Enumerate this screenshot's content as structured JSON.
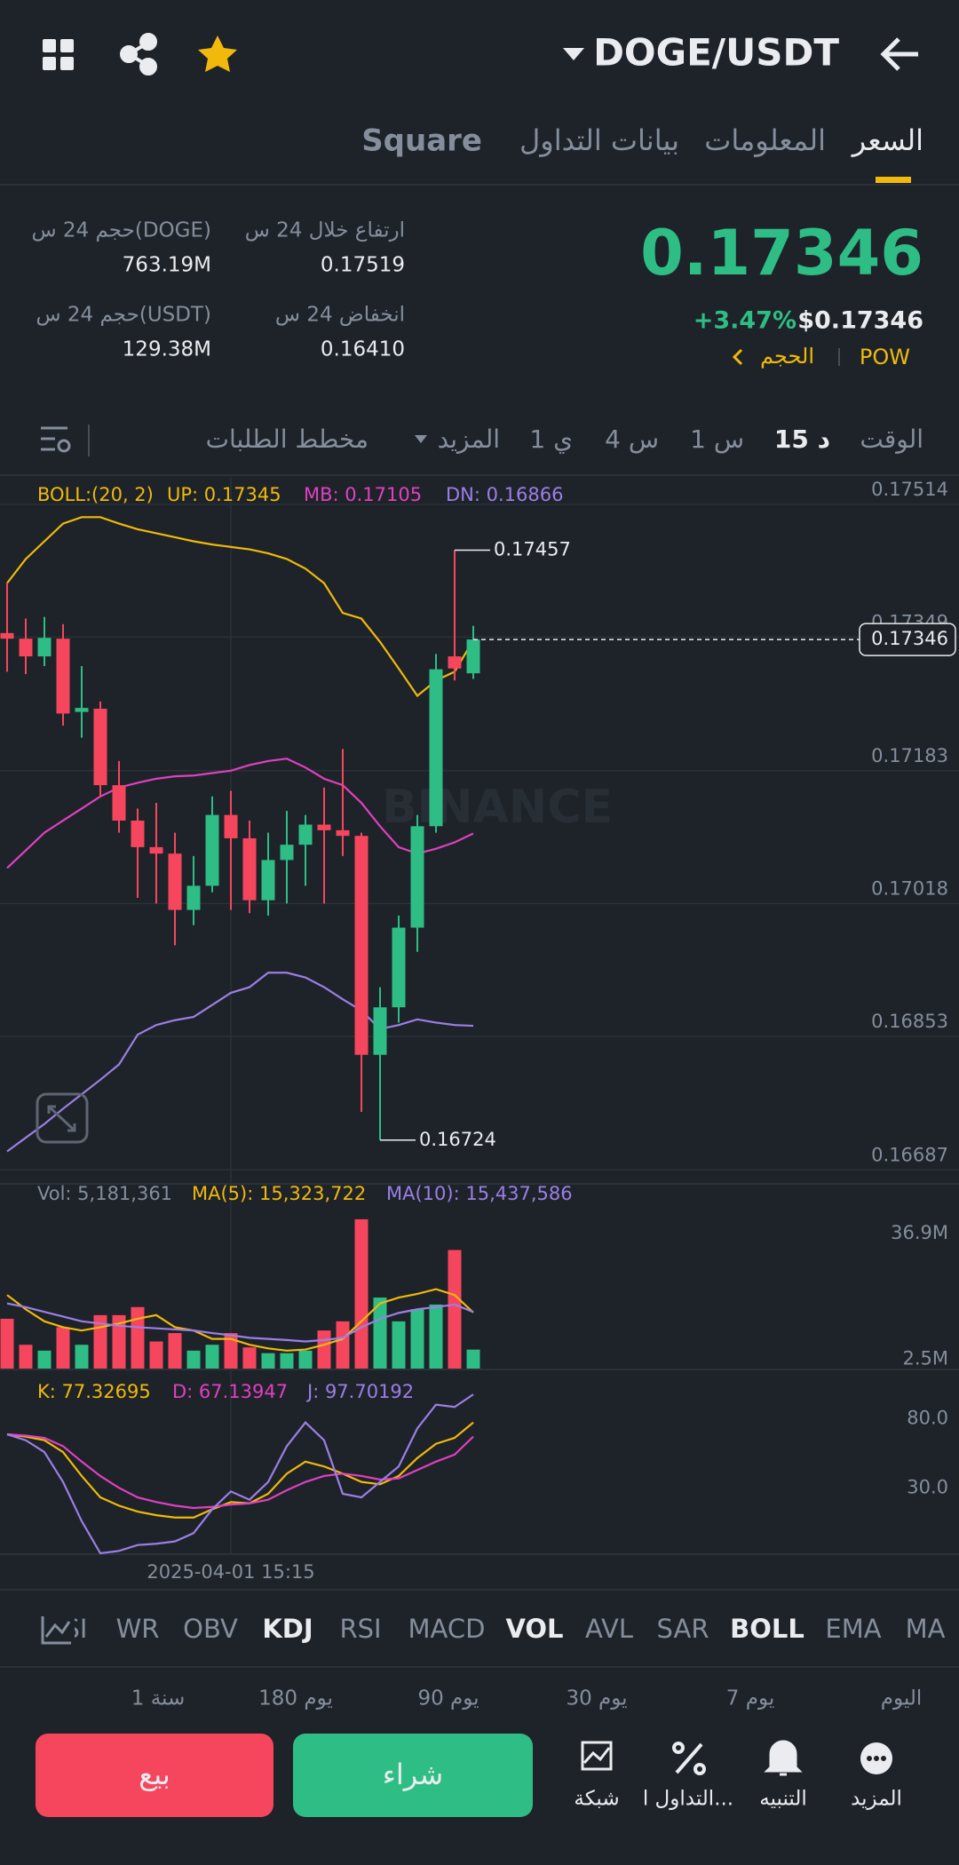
{
  "header": {
    "pair": "DOGE/USDT"
  },
  "tabs": [
    "السعر",
    "المعلومات",
    "بيانات التداول",
    "Square"
  ],
  "ticker": {
    "price": "0.17346",
    "change": "+3.47%",
    "usd_price": "$0.17346",
    "tag": "POW",
    "volume_link": "الحجم"
  },
  "stats": [
    {
      "label": "ارتفاع خلال 24 س",
      "value": "0.17519"
    },
    {
      "label": "حجم 24 س(DOGE)",
      "value": "763.19M"
    },
    {
      "label": "انخفاض 24 س",
      "value": "0.16410"
    },
    {
      "label": "حجم 24 س(USDT)",
      "value": "129.38M"
    }
  ],
  "intervals": [
    "الوقت",
    "15 د",
    "1 س",
    "4 س",
    "1 ي",
    "المزيد",
    "مخطط الطلبات"
  ],
  "watermark": "BINANCE",
  "chart_data": [
    {
      "type": "candlestick",
      "indicator": "BOLL:(20, 2)",
      "up_color": "#2ebd85",
      "down_color": "#f6465d",
      "grid": true,
      "categories": [
        null,
        null,
        null,
        null,
        null,
        null,
        null,
        null,
        null,
        null,
        null,
        null,
        "2025-04-01 15:15",
        null,
        null,
        null,
        null,
        null,
        null,
        null,
        null,
        null,
        null,
        null,
        null,
        null
      ],
      "open": [
        0.17354,
        0.17347,
        0.17325,
        0.17347,
        0.17256,
        0.1726,
        0.17165,
        0.17121,
        0.17088,
        0.1708,
        0.1701,
        0.1704,
        0.17128,
        0.17099,
        0.17022,
        0.17072,
        0.17091,
        0.17116,
        0.17109,
        0.17102,
        0.1683,
        0.16889,
        0.16988,
        0.17114,
        0.17325,
        0.17304
      ],
      "high": [
        0.17416,
        0.17372,
        0.17374,
        0.17365,
        0.17313,
        0.17269,
        0.17195,
        0.17136,
        0.17143,
        0.17106,
        0.17077,
        0.17151,
        0.17158,
        0.17121,
        0.17106,
        0.17133,
        0.17128,
        0.17162,
        0.1721,
        0.17106,
        0.16914,
        0.17003,
        0.17128,
        0.17328,
        0.17457,
        0.17363
      ],
      "low": [
        0.17306,
        0.17303,
        0.17313,
        0.17239,
        0.17224,
        0.1715,
        0.17106,
        0.17025,
        0.17018,
        0.16966,
        0.16991,
        0.17032,
        0.1701,
        0.17006,
        0.17003,
        0.17018,
        0.1704,
        0.17018,
        0.17077,
        0.16759,
        0.16724,
        0.1687,
        0.16958,
        0.17106,
        0.17295,
        0.17297
      ],
      "close": [
        0.17347,
        0.17325,
        0.17348,
        0.17254,
        0.17261,
        0.17165,
        0.17121,
        0.17088,
        0.1708,
        0.1701,
        0.1704,
        0.17128,
        0.17099,
        0.17022,
        0.17072,
        0.17091,
        0.17116,
        0.17109,
        0.17102,
        0.1683,
        0.16889,
        0.16988,
        0.17114,
        0.17309,
        0.1731,
        0.17346
      ],
      "series": [
        {
          "name": "UP: 0.17345",
          "color": "#f0b90b",
          "values": [
            0.17416,
            0.17446,
            0.17468,
            0.1749,
            0.17498,
            0.17498,
            0.1749,
            0.17483,
            0.17478,
            0.17473,
            0.17468,
            0.17464,
            0.17461,
            0.17458,
            0.17453,
            0.17446,
            0.17434,
            0.17416,
            0.17379,
            0.17372,
            0.17343,
            0.1731,
            0.17276,
            0.17295,
            0.17306,
            0.17345
          ]
        },
        {
          "name": "MB: 0.17105",
          "color": "#e040c0",
          "values": [
            0.17062,
            0.17084,
            0.17106,
            0.17121,
            0.17136,
            0.17151,
            0.17162,
            0.17168,
            0.17173,
            0.17176,
            0.17177,
            0.1718,
            0.17183,
            0.1719,
            0.17195,
            0.17198,
            0.17187,
            0.17173,
            0.17165,
            0.17143,
            0.17114,
            0.17088,
            0.1708,
            0.17086,
            0.17094,
            0.17105
          ]
        },
        {
          "name": "DN: 0.16866",
          "color": "#9b7fe6",
          "values": [
            0.1671,
            0.16727,
            0.16744,
            0.16763,
            0.16781,
            0.16799,
            0.16818,
            0.16855,
            0.16867,
            0.16873,
            0.16877,
            0.16892,
            0.16907,
            0.16914,
            0.16932,
            0.16932,
            0.16926,
            0.16914,
            0.16899,
            0.16885,
            0.16862,
            0.16867,
            0.16874,
            0.1687,
            0.16867,
            0.16866
          ]
        }
      ],
      "ylim": [
        0.16673,
        0.17548
      ],
      "yticks": [
        0.17514,
        0.17349,
        0.17183,
        0.17018,
        0.16853,
        0.16687
      ]
    },
    {
      "type": "bar",
      "grid": false,
      "series": [
        {
          "name": "Vol: 5,181,361",
          "color": "#848e9c",
          "values": [
            13600000,
            6500000,
            4900000,
            11300000,
            6500000,
            14600000,
            14600000,
            16800000,
            7400000,
            9700000,
            4900000,
            6500000,
            9700000,
            5800000,
            4200000,
            4200000,
            4900000,
            10400000,
            12900000,
            40800000,
            19400000,
            12900000,
            16200000,
            17500000,
            32400000,
            5181361
          ]
        },
        {
          "name": "MA(5): 15,323,722",
          "color": "#f0b90b",
          "values": [
            20100000,
            16200000,
            12900000,
            11300000,
            10400000,
            11300000,
            12300000,
            13600000,
            14600000,
            11300000,
            10400000,
            8100000,
            8100000,
            6500000,
            5500000,
            4900000,
            5200000,
            6500000,
            8100000,
            12900000,
            17800000,
            19400000,
            20400000,
            21700000,
            20100000,
            15323722
          ]
        },
        {
          "name": "MA(10): 15,437,586",
          "color": "#9b7fe6",
          "values": [
            17800000,
            16800000,
            15500000,
            14200000,
            12900000,
            12300000,
            11700000,
            11300000,
            11000000,
            10700000,
            10400000,
            9700000,
            9100000,
            8400000,
            8100000,
            7800000,
            7400000,
            7800000,
            8400000,
            11300000,
            13600000,
            15200000,
            16200000,
            16800000,
            17500000,
            15437586
          ]
        }
      ],
      "ylim": [
        0,
        50000000
      ],
      "yticks": [
        {
          "value": 36900000,
          "label": "36.9M"
        },
        {
          "value": 2500000,
          "label": "2.5M"
        }
      ]
    },
    {
      "type": "line",
      "grid": false,
      "series": [
        {
          "name": "K: 77.32695",
          "color": "#f0b90b",
          "values": [
            68.8,
            67.1,
            64.5,
            55.9,
            38.6,
            23.1,
            17.1,
            12.8,
            10.2,
            8.5,
            8.5,
            14.5,
            19.7,
            18.8,
            25.7,
            40.3,
            49.0,
            45.5,
            40.3,
            34.3,
            32.6,
            38.6,
            51.6,
            61.9,
            66.2,
            77.32695
          ]
        },
        {
          "name": "D: 67.13947",
          "color": "#e040c0",
          "values": [
            68.8,
            67.9,
            66.2,
            60.2,
            49.0,
            38.6,
            30.0,
            23.1,
            19.7,
            17.1,
            15.4,
            16.2,
            17.9,
            18.8,
            21.4,
            28.3,
            34.3,
            38.6,
            40.3,
            38.6,
            36.0,
            36.9,
            42.9,
            49.0,
            54.1,
            67.13947
          ]
        },
        {
          "name": "J: 97.70192",
          "color": "#9b7fe6",
          "values": [
            68.8,
            64.5,
            55.9,
            34.3,
            5.9,
            -17.4,
            -15.7,
            -11.4,
            -10.5,
            -8.8,
            -2.8,
            14.5,
            27.4,
            21.4,
            34.3,
            60.2,
            77.4,
            64.5,
            25.7,
            23.1,
            34.3,
            45.5,
            73.1,
            90.3,
            88.6,
            97.70192
          ]
        }
      ],
      "ylim": [
        -17.4,
        114.5
      ],
      "yticks": [
        {
          "value": 80,
          "label": "80.0"
        },
        {
          "value": 30,
          "label": "30.0"
        }
      ]
    }
  ],
  "indicators": [
    "MA",
    "EMA",
    "BOLL",
    "SAR",
    "AVL",
    "VOL",
    "MACD",
    "RSI",
    "KDJ",
    "OBV",
    "WR",
    "SI"
  ],
  "ranges": [
    "اليوم",
    "7 يوم",
    "30 يوم",
    "90 يوم",
    "180 يوم",
    "1 سنة"
  ],
  "actions": {
    "sell": "بيع",
    "buy": "شراء",
    "tools": [
      "شبكة",
      "التداول ا...",
      "التنبيه",
      "المزيد"
    ]
  }
}
